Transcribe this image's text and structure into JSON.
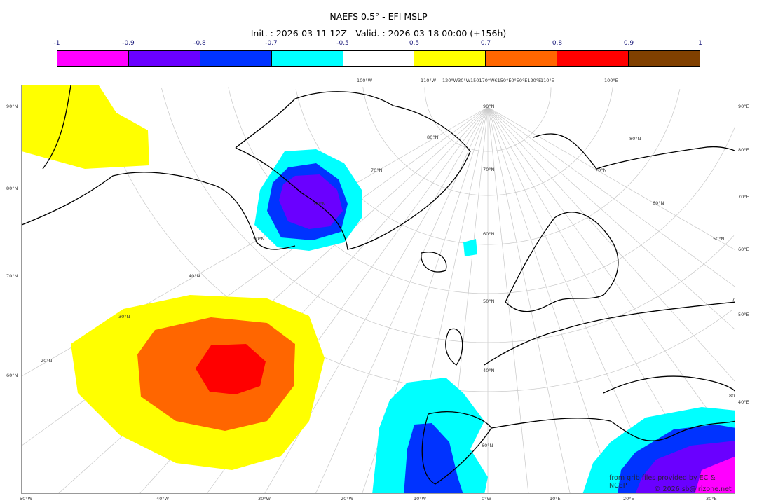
{
  "title": "NAEFS 0.5° - EFI MSLP",
  "subtitle": "Init. : 2026-03-11 12Z - Valid. : 2026-03-18 00:00 (+156h)",
  "colorbar": {
    "ticks": [
      "-1",
      "-0.9",
      "-0.8",
      "-0.7",
      "-0.5",
      "0.5",
      "0.7",
      "0.8",
      "0.9",
      "1"
    ],
    "colors": [
      "#ff00ff",
      "#6a00ff",
      "#0033ff",
      "#00ffff",
      "#ffffff",
      "#ffff00",
      "#ff6600",
      "#ff0000",
      "#804000"
    ]
  },
  "axes": {
    "left": [
      "90°N",
      "80°N",
      "70°N",
      "60°N"
    ],
    "right": [
      "90°E",
      "80°E",
      "70°E",
      "60°E",
      "50°E",
      "40°E"
    ],
    "bottom": [
      "50°W",
      "40°W",
      "30°W",
      "20°W",
      "10°W",
      "0°W",
      "10°E",
      "20°E",
      "30°E"
    ],
    "top": [
      "100°W",
      "110°W",
      "120°W30°W150170°W€150°E0°E0°E120°E",
      "110°E",
      "100°E"
    ],
    "inner": [
      "90°N",
      "80°N",
      "70°N",
      "60°N",
      "50°N",
      "60°N",
      "70°N",
      "80°N",
      "70°N",
      "60°N",
      "50°N",
      "40°N",
      "30°N",
      "20°N",
      "50°N",
      "40°N",
      "60°N",
      "70°N",
      "80°N"
    ]
  },
  "credits": {
    "line1": "from grib files provided by EC & NCEP",
    "line2": "© 2026 sb@irizone.net"
  }
}
